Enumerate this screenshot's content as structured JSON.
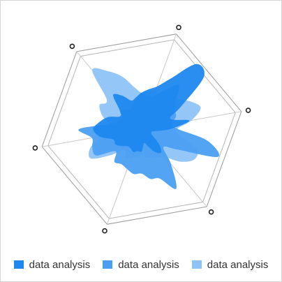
{
  "chart_data": {
    "type": "radar",
    "title": "",
    "axes_count": 6,
    "range": [
      0,
      100
    ],
    "grid": true,
    "legend_position": "bottom",
    "legend": [
      "data analysis",
      "data analysis",
      "data analysis"
    ],
    "series": [
      {
        "name": "data analysis",
        "color": "#1e88ef",
        "points": [
          [
            0,
            45
          ],
          [
            10,
            58
          ],
          [
            20,
            84
          ],
          [
            30,
            80
          ],
          [
            40,
            45
          ],
          [
            50,
            30
          ],
          [
            60,
            48
          ],
          [
            70,
            28
          ],
          [
            80,
            12
          ],
          [
            90,
            10
          ],
          [
            100,
            12
          ],
          [
            110,
            22
          ],
          [
            120,
            30
          ],
          [
            130,
            26
          ],
          [
            140,
            18
          ],
          [
            150,
            14
          ],
          [
            160,
            22
          ],
          [
            170,
            22
          ],
          [
            180,
            24
          ],
          [
            190,
            22
          ],
          [
            200,
            22
          ],
          [
            210,
            26
          ],
          [
            220,
            30
          ],
          [
            230,
            30
          ],
          [
            240,
            42
          ],
          [
            250,
            48
          ],
          [
            260,
            42
          ],
          [
            270,
            35
          ],
          [
            280,
            25
          ],
          [
            290,
            28
          ],
          [
            300,
            44
          ],
          [
            310,
            38
          ],
          [
            320,
            30
          ],
          [
            330,
            32
          ],
          [
            340,
            36
          ],
          [
            350,
            40
          ]
        ]
      },
      {
        "name": "data analysis",
        "color": "#4a9ff2",
        "points": [
          [
            0,
            35
          ],
          [
            10,
            44
          ],
          [
            20,
            57
          ],
          [
            30,
            44
          ],
          [
            40,
            38
          ],
          [
            50,
            36
          ],
          [
            60,
            30
          ],
          [
            70,
            36
          ],
          [
            80,
            66
          ],
          [
            90,
            80
          ],
          [
            100,
            40
          ],
          [
            110,
            28
          ],
          [
            120,
            45
          ],
          [
            130,
            68
          ],
          [
            140,
            52
          ],
          [
            150,
            50
          ],
          [
            160,
            44
          ],
          [
            170,
            45
          ],
          [
            180,
            42
          ],
          [
            190,
            40
          ],
          [
            200,
            42
          ],
          [
            210,
            34
          ],
          [
            220,
            52
          ],
          [
            230,
            52
          ],
          [
            240,
            50
          ],
          [
            250,
            62
          ],
          [
            260,
            30
          ],
          [
            270,
            24
          ],
          [
            280,
            22
          ],
          [
            290,
            28
          ],
          [
            300,
            25
          ],
          [
            310,
            22
          ],
          [
            320,
            25
          ],
          [
            330,
            31
          ],
          [
            340,
            36
          ],
          [
            350,
            33
          ]
        ]
      },
      {
        "name": "data analysis",
        "color": "#8ec3f7",
        "points": [
          [
            0,
            40
          ],
          [
            10,
            35
          ],
          [
            20,
            40
          ],
          [
            30,
            46
          ],
          [
            40,
            55
          ],
          [
            50,
            62
          ],
          [
            60,
            50
          ],
          [
            70,
            35
          ],
          [
            80,
            38
          ],
          [
            90,
            58
          ],
          [
            100,
            60
          ],
          [
            110,
            50
          ],
          [
            120,
            36
          ],
          [
            130,
            32
          ],
          [
            140,
            30
          ],
          [
            150,
            28
          ],
          [
            160,
            26
          ],
          [
            170,
            28
          ],
          [
            180,
            30
          ],
          [
            190,
            32
          ],
          [
            200,
            26
          ],
          [
            210,
            40
          ],
          [
            220,
            58
          ],
          [
            230,
            54
          ],
          [
            240,
            40
          ],
          [
            250,
            32
          ],
          [
            260,
            34
          ],
          [
            270,
            42
          ],
          [
            280,
            48
          ],
          [
            290,
            45
          ],
          [
            300,
            76
          ],
          [
            310,
            66
          ],
          [
            320,
            55
          ],
          [
            330,
            42
          ],
          [
            340,
            36
          ],
          [
            350,
            38
          ]
        ]
      }
    ]
  }
}
